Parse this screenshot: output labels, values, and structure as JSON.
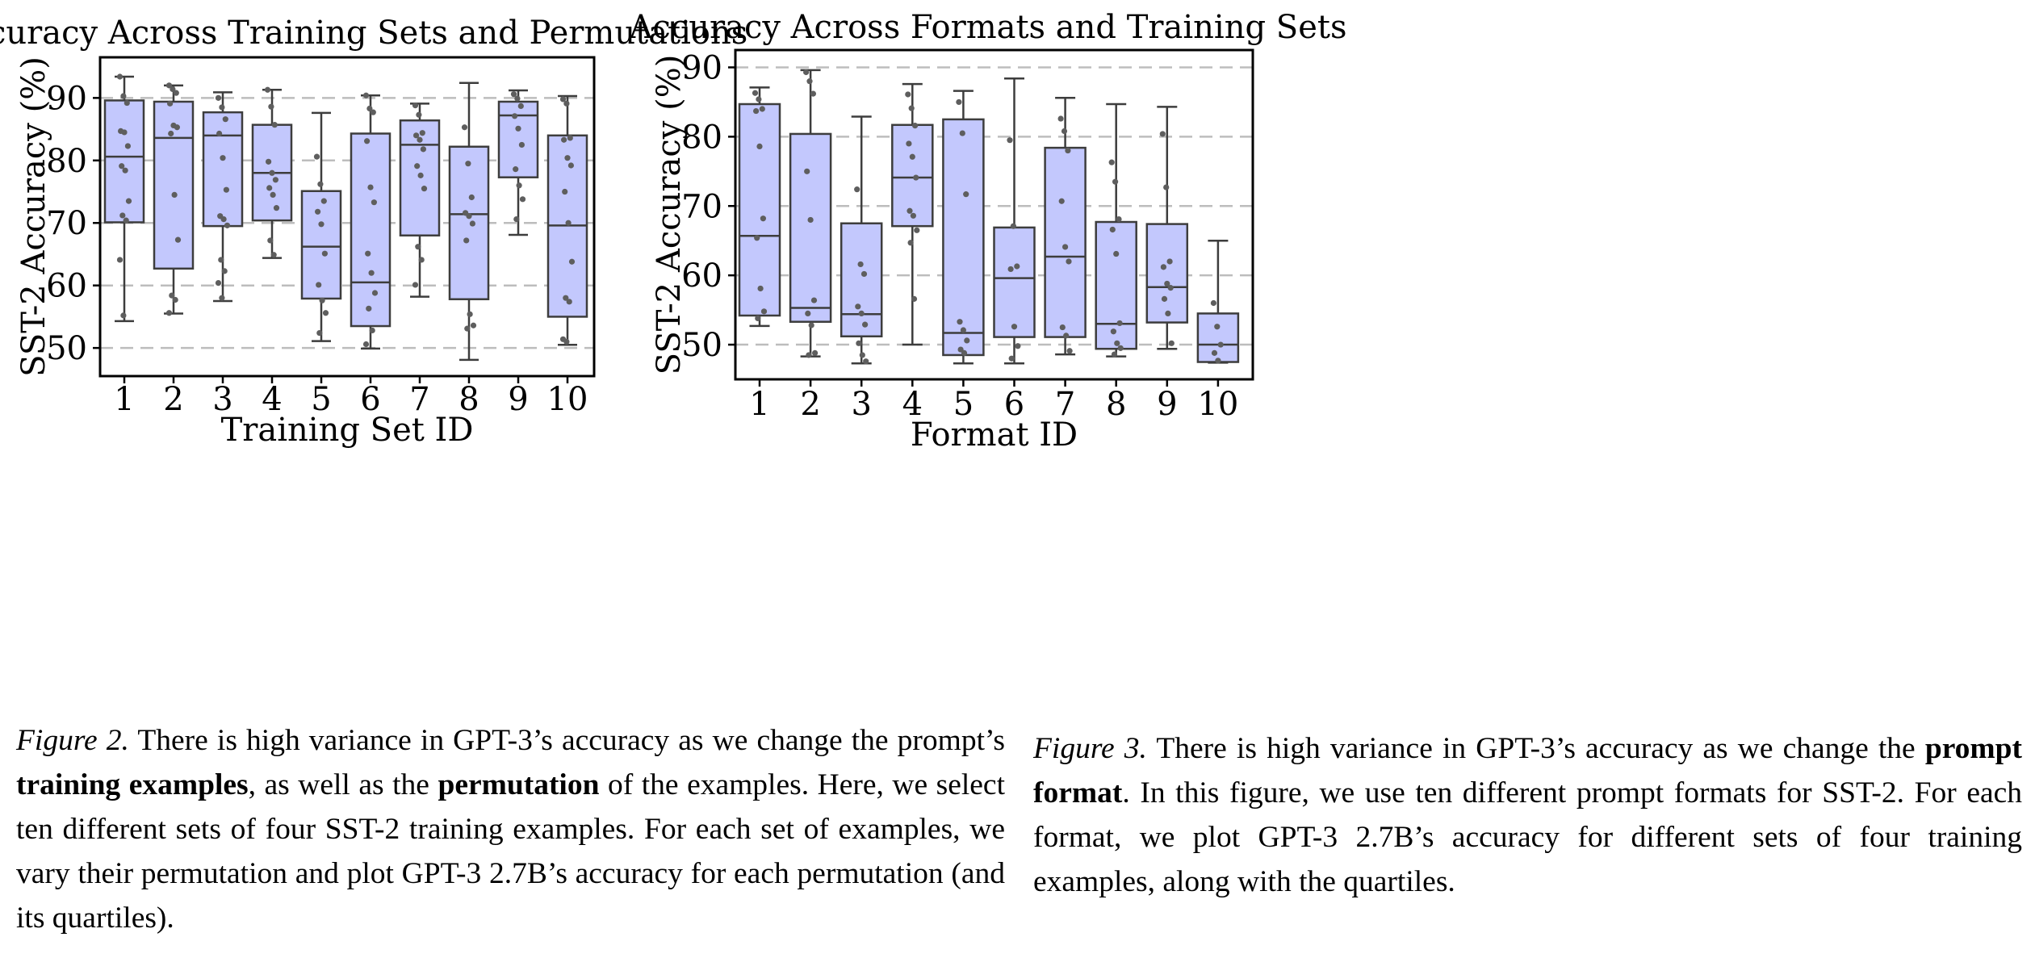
{
  "figures": [
    {
      "caption": {
        "fig_num": "Figure 2.",
        "parts": [
          {
            "text": " There is high variance in GPT-3’s accuracy as we change the prompt’s ",
            "bold": false
          },
          {
            "text": "training examples",
            "bold": true
          },
          {
            "text": ", as well as the ",
            "bold": false
          },
          {
            "text": "permutation",
            "bold": true
          },
          {
            "text": " of the examples. Here, we select ten different sets of four SST-2 training examples. For each set of examples, we vary their permutation and plot GPT-3 2.7B’s accuracy for each permutation (and its quartiles).",
            "bold": false
          }
        ]
      }
    },
    {
      "caption": {
        "fig_num": "Figure 3.",
        "parts": [
          {
            "text": " There is high variance in GPT-3’s accuracy as we change the ",
            "bold": false
          },
          {
            "text": "prompt format",
            "bold": true
          },
          {
            "text": ". In this figure, we use ten different prompt formats for SST-2. For each format, we plot GPT-3 2.7B’s accuracy for different sets of four training examples, along with the quartiles.",
            "bold": false
          }
        ]
      }
    }
  ],
  "colors": {
    "box_fill": "#c3c8fd",
    "box_stroke": "#3d3d3d",
    "point": "#5e5e5e",
    "grid": "#bdbdbd"
  },
  "chart_data": [
    {
      "type": "box",
      "title": "Accuracy Across Training Sets and Permutations",
      "xlabel": "Training Set ID",
      "ylabel": "SST-2 Accuracy (%)",
      "categories": [
        "1",
        "2",
        "3",
        "4",
        "5",
        "6",
        "7",
        "8",
        "9",
        "10"
      ],
      "ylim": [
        45.5,
        96.5
      ],
      "yticks": [
        50,
        60,
        70,
        80,
        90
      ],
      "grid": "horizontal dashed",
      "boxes": [
        {
          "whislo": 54.3,
          "q1": 70.1,
          "med": 80.6,
          "q3": 89.6,
          "whishi": 93.4,
          "points": [
            93.4,
            90.3,
            89.2,
            84.7,
            84.5,
            82.3,
            79.1,
            78.4,
            73.5,
            71.2,
            70.4,
            64.1,
            55.2
          ]
        },
        {
          "whislo": 55.5,
          "q1": 62.7,
          "med": 83.6,
          "q3": 89.4,
          "whishi": 92.0,
          "points": [
            92.0,
            91.4,
            90.8,
            89.1,
            85.6,
            85.3,
            84.3,
            74.5,
            67.3,
            58.4,
            57.7,
            55.6
          ]
        },
        {
          "whislo": 57.5,
          "q1": 69.5,
          "med": 84.0,
          "q3": 87.7,
          "whishi": 90.9,
          "points": [
            90.0,
            88.5,
            86.6,
            84.3,
            80.4,
            75.3,
            71.1,
            70.6,
            69.6,
            64.1,
            62.3,
            60.4,
            58.0
          ]
        },
        {
          "whislo": 64.4,
          "q1": 70.4,
          "med": 78.0,
          "q3": 85.7,
          "whishi": 91.3,
          "points": [
            91.3,
            88.6,
            85.7,
            79.8,
            78.0,
            76.9,
            75.6,
            74.5,
            72.4,
            67.2,
            64.9
          ]
        },
        {
          "whislo": 51.1,
          "q1": 57.9,
          "med": 66.2,
          "q3": 75.1,
          "whishi": 87.6,
          "points": [
            80.6,
            76.2,
            73.5,
            71.8,
            69.8,
            65.1,
            60.1,
            57.6,
            55.6,
            52.4
          ]
        },
        {
          "whislo": 49.9,
          "q1": 53.5,
          "med": 60.5,
          "q3": 84.3,
          "whishi": 90.4,
          "points": [
            90.4,
            88.3,
            87.7,
            83.1,
            75.7,
            73.3,
            65.1,
            62.0,
            58.8,
            56.3,
            52.8,
            50.6
          ]
        },
        {
          "whislo": 58.2,
          "q1": 68.0,
          "med": 82.5,
          "q3": 86.4,
          "whishi": 89.1,
          "points": [
            88.8,
            87.3,
            84.4,
            84.0,
            83.3,
            81.8,
            79.1,
            77.6,
            75.5,
            66.2,
            64.1,
            60.1
          ]
        },
        {
          "whislo": 48.1,
          "q1": 57.8,
          "med": 71.4,
          "q3": 82.2,
          "whishi": 92.4,
          "points": [
            85.3,
            79.5,
            74.1,
            71.6,
            71.1,
            69.9,
            67.2,
            55.4,
            53.6,
            53.1
          ]
        },
        {
          "whislo": 68.1,
          "q1": 77.3,
          "med": 87.2,
          "q3": 89.4,
          "whishi": 91.2,
          "points": [
            90.6,
            89.9,
            88.7,
            87.1,
            85.1,
            82.5,
            78.6,
            76.0,
            73.8,
            70.6
          ]
        },
        {
          "whislo": 50.5,
          "q1": 55.0,
          "med": 69.6,
          "q3": 84.0,
          "whishi": 90.3,
          "points": [
            89.8,
            89.1,
            83.6,
            83.3,
            80.4,
            79.2,
            75.0,
            70.0,
            63.8,
            58.0,
            57.4,
            51.4,
            51.0
          ]
        }
      ]
    },
    {
      "type": "box",
      "title": "Accuracy Across Formats and Training Sets",
      "xlabel": "Format ID",
      "ylabel": "SST-2 Accuracy (%)",
      "categories": [
        "1",
        "2",
        "3",
        "4",
        "5",
        "6",
        "7",
        "8",
        "9",
        "10"
      ],
      "ylim": [
        45.0,
        92.5
      ],
      "yticks": [
        50,
        60,
        70,
        80,
        90
      ],
      "grid": "horizontal dashed",
      "boxes": [
        {
          "whislo": 52.7,
          "q1": 54.2,
          "med": 65.7,
          "q3": 84.7,
          "whishi": 87.1,
          "points": [
            86.3,
            85.4,
            84.0,
            83.7,
            78.6,
            68.2,
            65.4,
            58.1,
            54.8,
            53.8
          ]
        },
        {
          "whislo": 48.3,
          "q1": 53.3,
          "med": 55.3,
          "q3": 80.4,
          "whishi": 89.6,
          "points": [
            89.3,
            88.0,
            86.2,
            75.0,
            68.0,
            56.4,
            54.5,
            52.8,
            48.8,
            48.5
          ]
        },
        {
          "whislo": 47.3,
          "q1": 51.2,
          "med": 54.4,
          "q3": 67.5,
          "whishi": 82.9,
          "points": [
            72.4,
            61.6,
            60.2,
            55.5,
            54.5,
            52.9,
            50.2,
            48.5,
            47.6
          ]
        },
        {
          "whislo": 50.0,
          "q1": 67.1,
          "med": 74.1,
          "q3": 81.7,
          "whishi": 87.6,
          "points": [
            86.1,
            84.1,
            81.6,
            79.0,
            77.1,
            74.1,
            69.3,
            68.6,
            66.5,
            64.7,
            56.6
          ]
        },
        {
          "whislo": 47.3,
          "q1": 48.5,
          "med": 51.7,
          "q3": 82.5,
          "whishi": 86.6,
          "points": [
            85.0,
            80.5,
            71.7,
            53.3,
            52.1,
            50.6,
            49.3,
            48.8
          ]
        },
        {
          "whislo": 47.3,
          "q1": 51.1,
          "med": 59.6,
          "q3": 66.9,
          "whishi": 88.4,
          "points": [
            79.5,
            67.1,
            61.3,
            60.9,
            52.6,
            49.8,
            48.0
          ]
        },
        {
          "whislo": 48.6,
          "q1": 51.1,
          "med": 62.7,
          "q3": 78.4,
          "whishi": 85.6,
          "points": [
            82.6,
            80.8,
            78.0,
            70.7,
            64.1,
            62.0,
            52.5,
            51.3,
            49.1
          ]
        },
        {
          "whislo": 48.3,
          "q1": 49.4,
          "med": 53.0,
          "q3": 67.7,
          "whishi": 84.7,
          "points": [
            76.3,
            73.5,
            68.1,
            66.6,
            63.1,
            53.1,
            51.9,
            50.2,
            49.5,
            48.6
          ]
        },
        {
          "whislo": 49.4,
          "q1": 53.2,
          "med": 58.3,
          "q3": 67.4,
          "whishi": 84.3,
          "points": [
            80.4,
            72.7,
            62.0,
            61.2,
            58.8,
            58.2,
            56.6,
            54.5,
            50.2
          ]
        },
        {
          "whislo": 47.4,
          "q1": 47.5,
          "med": 50.0,
          "q3": 54.5,
          "whishi": 65.0,
          "points": [
            56.0,
            52.6,
            50.0,
            48.8,
            47.7
          ]
        }
      ]
    }
  ]
}
